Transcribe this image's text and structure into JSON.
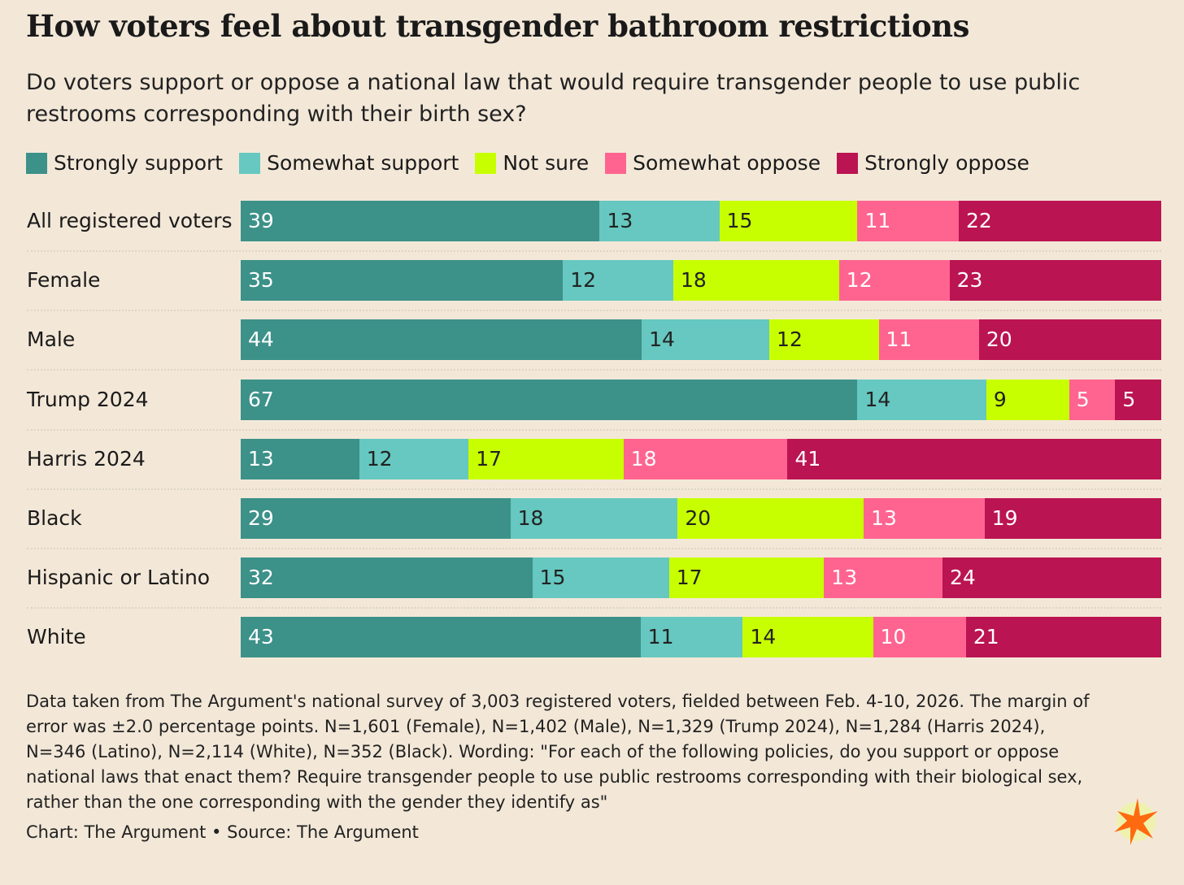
{
  "chart_data": {
    "type": "bar",
    "orientation": "horizontal-stacked-100",
    "title": "How voters feel about transgender bathroom restrictions",
    "subtitle": "Do voters support or oppose a national law that would require transgender people to use public restrooms corresponding with their birth sex?",
    "legend_position": "top-left",
    "categories": [
      "All registered voters",
      "Female",
      "Male",
      "Trump 2024",
      "Harris 2024",
      "Black",
      "Hispanic or Latino",
      "White"
    ],
    "series": [
      {
        "name": "Strongly support",
        "color": "#3c9189",
        "label_color": "#ffffff",
        "values": [
          39,
          35,
          44,
          67,
          13,
          29,
          32,
          43
        ]
      },
      {
        "name": "Somewhat support",
        "color": "#66c8c0",
        "label_color": "#222222",
        "values": [
          13,
          12,
          14,
          14,
          12,
          18,
          15,
          11
        ]
      },
      {
        "name": "Not sure",
        "color": "#c8ff00",
        "label_color": "#222222",
        "values": [
          15,
          18,
          12,
          9,
          17,
          20,
          17,
          14
        ]
      },
      {
        "name": "Somewhat oppose",
        "color": "#ff6490",
        "label_color": "#ffffff",
        "values": [
          11,
          12,
          11,
          5,
          18,
          13,
          13,
          10
        ]
      },
      {
        "name": "Strongly oppose",
        "color": "#bb1452",
        "label_color": "#ffffff",
        "values": [
          22,
          23,
          20,
          5,
          41,
          19,
          24,
          21
        ]
      }
    ]
  },
  "notes": "Data taken from The Argument's national survey of 3,003 registered voters, fielded between Feb. 4-10, 2026. The margin of error was ±2.0 percentage points. N=1,601 (Female), N=1,402 (Male), N=1,329 (Trump 2024), N=1,284 (Harris 2024), N=346 (Latino), N=2,114 (White), N=352 (Black). Wording: \"For each of the following policies, do you support or oppose national laws that enact them? Require transgender people to use public restrooms corresponding with their biological sex, rather than the one corresponding with the gender they identify as\"",
  "credit": "Chart: The Argument • Source: The Argument",
  "logo_icon": "starburst-icon"
}
